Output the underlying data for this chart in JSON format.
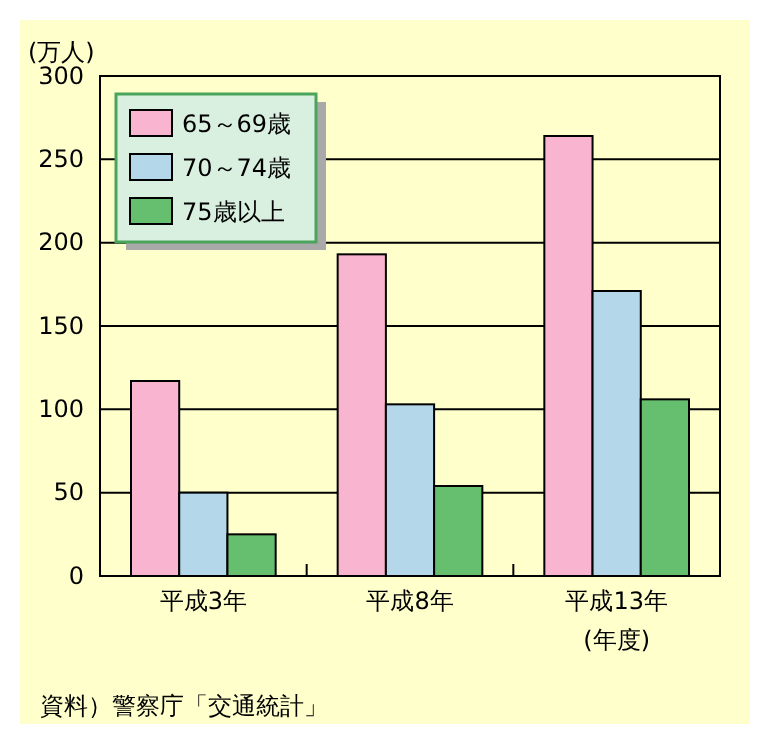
{
  "chart_data": {
    "type": "bar",
    "ylabel": "(万人)",
    "xlabel": "(年度)",
    "categories": [
      "平成3年",
      "平成8年",
      "平成13年"
    ],
    "series": [
      {
        "name": "65～69歳",
        "color": "#f9b4cf",
        "values": [
          117,
          193,
          264
        ]
      },
      {
        "name": "70～74歳",
        "color": "#b4d7ea",
        "values": [
          50,
          103,
          171
        ]
      },
      {
        "name": "75歳以上",
        "color": "#66bf6e",
        "values": [
          25,
          54,
          106
        ]
      }
    ],
    "ylim": [
      0,
      300
    ],
    "yticks": [
      0,
      50,
      100,
      150,
      200,
      250,
      300
    ],
    "grid": "y",
    "legend": "top left",
    "annotations": [
      "資料）警察庁「交通統計」"
    ]
  }
}
